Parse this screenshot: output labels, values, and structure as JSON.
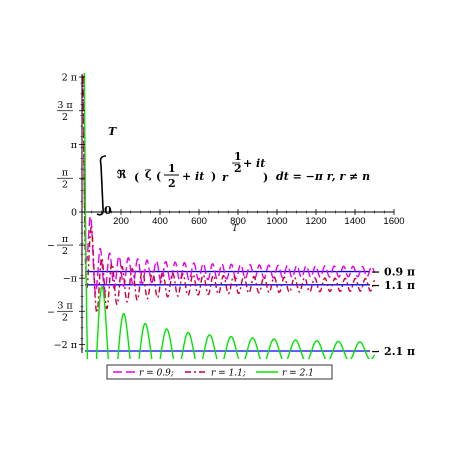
{
  "chart_data": {
    "type": "line",
    "title": "",
    "xlabel": "T",
    "ylabel": "",
    "xlim": [
      0,
      1600
    ],
    "ylim": [
      -7.0,
      6.2832
    ],
    "x_ticks": [
      200,
      400,
      600,
      800,
      1000,
      1200,
      1400,
      1600
    ],
    "x_tick_labels": [
      "200",
      "400",
      "600",
      "800",
      "1000",
      "1200",
      "1400",
      "1600"
    ],
    "y_ticks": [
      {
        "value": 6.2832,
        "label": "2 π"
      },
      {
        "value": 4.7124,
        "num": "3 π",
        "den": "2"
      },
      {
        "value": 3.1416,
        "label": "π"
      },
      {
        "value": 1.5708,
        "num": "π",
        "den": "2"
      },
      {
        "value": 0,
        "label": "0"
      },
      {
        "value": -1.5708,
        "num": "π",
        "den": "2",
        "neg": true
      },
      {
        "value": -3.1416,
        "label": "−π"
      },
      {
        "value": -4.7124,
        "num": "3 π",
        "den": "2",
        "neg": true
      },
      {
        "value": -6.2832,
        "label": "−2 π"
      }
    ],
    "formula": {
      "integral_upper": "T",
      "integral_lower": "0",
      "real_part": "ℜ",
      "zeta": "ζ",
      "half_num": "1",
      "half_den": "2",
      "plus_it": "+ it",
      "r": "r",
      "exp_num": "1",
      "exp_den": "2",
      "exp_it": "+ it",
      "rhs": "dt = −π r,    r ≠ n"
    },
    "reference_lines": [
      {
        "y": -2.8274,
        "label": "− 0.9 π",
        "color": "#0000ee"
      },
      {
        "y": -3.4558,
        "label": "− 1.1 π",
        "color": "#0000ee"
      },
      {
        "y": -6.5973,
        "label": "− 2.1 π",
        "color": "#0000ee"
      }
    ],
    "series": [
      {
        "name": "r = 0.9",
        "color": "#e600e6",
        "dash": "9,4",
        "r": 0.9,
        "amp": 1.4,
        "period": 48,
        "decay": 0.55
      },
      {
        "name": "r = 1.1",
        "color": "#cc0033",
        "dash": "6,3,2,3",
        "r": 1.1,
        "amp": 1.7,
        "period": 52,
        "decay": 0.55
      },
      {
        "name": "r = 2.1",
        "color": "#00e600",
        "dash": "",
        "r": 2.1,
        "amp": 4.6,
        "period": 110,
        "decay": 0.75
      }
    ],
    "legend": {
      "placement": "bottom",
      "entries": [
        "r = 0.9;",
        "r = 1.1;",
        "r = 2.1"
      ]
    },
    "grid": false
  }
}
